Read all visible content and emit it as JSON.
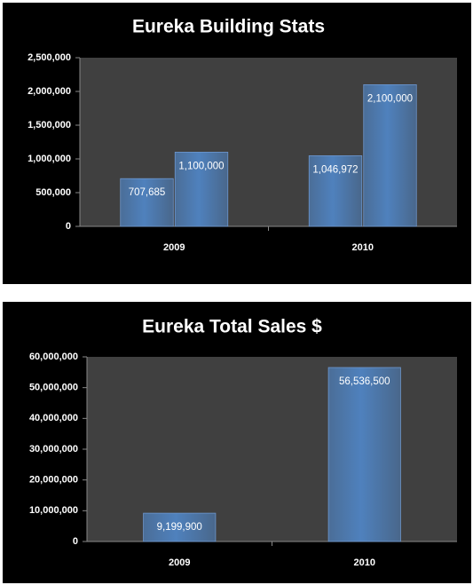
{
  "chart_data": [
    {
      "type": "bar",
      "title": "Eureka Building Stats",
      "categories": [
        "2009",
        "2010"
      ],
      "series": [
        {
          "color": "#4f81bd",
          "values": [
            707685,
            1046972
          ],
          "value_labels": [
            "707,685",
            "1,046,972"
          ]
        },
        {
          "color": "#4f81bd",
          "values": [
            1100000,
            2100000
          ],
          "value_labels": [
            "1,100,000",
            "2,100,000"
          ]
        }
      ],
      "ylim": [
        0,
        2500000
      ],
      "yticks": [
        0,
        {
          "value": 500000,
          "label": "500,000"
        },
        {
          "value": 1000000,
          "label": "1,000,000"
        },
        {
          "value": 1500000,
          "label": "1,500,000"
        },
        {
          "value": 2000000,
          "label": "2,000,000"
        },
        {
          "value": 2500000,
          "label": "2,500,000"
        }
      ],
      "grid": false
    },
    {
      "type": "bar",
      "title": "Eureka Total Sales $",
      "categories": [
        "2009",
        "2010"
      ],
      "series": [
        {
          "color": "#4f81bd",
          "values": [
            9199900,
            56536500
          ],
          "value_labels": [
            "9,199,900",
            "56,536,500"
          ]
        }
      ],
      "ylim": [
        0,
        60000000
      ],
      "yticks": [
        0,
        {
          "value": 10000000,
          "label": "10,000,000"
        },
        {
          "value": 20000000,
          "label": "20,000,000"
        },
        {
          "value": 30000000,
          "label": "30,000,000"
        },
        {
          "value": 40000000,
          "label": "40,000,000"
        },
        {
          "value": 50000000,
          "label": "50,000,000"
        },
        {
          "value": 60000000,
          "label": "60,000,000"
        }
      ],
      "grid": false
    }
  ]
}
